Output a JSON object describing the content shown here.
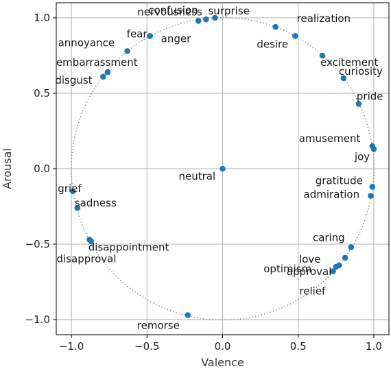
{
  "chart_data": {
    "type": "scatter",
    "title": "",
    "xlabel": "Valence",
    "ylabel": "Arousal",
    "xlim": [
      -1.1,
      1.1
    ],
    "ylim": [
      -1.1,
      1.1
    ],
    "xticks": [
      -1.0,
      -0.5,
      0.0,
      0.5,
      1.0
    ],
    "yticks": [
      -1.0,
      -0.5,
      0.0,
      0.5,
      1.0
    ],
    "xtick_labels": [
      "−1.0",
      "−0.5",
      "0.0",
      "0.5",
      "1.0"
    ],
    "ytick_labels": [
      "−1.0",
      "−0.5",
      "0.0",
      "0.5",
      "1.0"
    ],
    "grid": true,
    "reference_circle": {
      "radius": 1.0,
      "style": "dotted",
      "color": "#888888"
    },
    "marker_color": "#1f77b4",
    "points": [
      {
        "label": "nervousness",
        "x": -0.16,
        "y": 0.98
      },
      {
        "label": "surprise",
        "x": -0.05,
        "y": 1.0
      },
      {
        "label": "confusion",
        "x": -0.11,
        "y": 0.99
      },
      {
        "label": "fear",
        "x": -0.48,
        "y": 0.88
      },
      {
        "label": "anger",
        "x": -0.48,
        "y": 0.88
      },
      {
        "label": "annoyance",
        "x": -0.63,
        "y": 0.78
      },
      {
        "label": "embarrassment",
        "x": -0.76,
        "y": 0.64
      },
      {
        "label": "disgust",
        "x": -0.79,
        "y": 0.61
      },
      {
        "label": "realization",
        "x": 0.35,
        "y": 0.94
      },
      {
        "label": "desire",
        "x": 0.48,
        "y": 0.88
      },
      {
        "label": "excitement",
        "x": 0.66,
        "y": 0.75
      },
      {
        "label": "curiosity",
        "x": 0.8,
        "y": 0.6
      },
      {
        "label": "pride",
        "x": 0.9,
        "y": 0.43
      },
      {
        "label": "amusement",
        "x": 0.99,
        "y": 0.15
      },
      {
        "label": "joy",
        "x": 1.0,
        "y": 0.13
      },
      {
        "label": "gratitude",
        "x": 0.99,
        "y": -0.12
      },
      {
        "label": "admiration",
        "x": 0.98,
        "y": -0.18
      },
      {
        "label": "caring",
        "x": 0.85,
        "y": -0.52
      },
      {
        "label": "love",
        "x": 0.81,
        "y": -0.59
      },
      {
        "label": "optimism",
        "x": 0.77,
        "y": -0.64
      },
      {
        "label": "approval",
        "x": 0.75,
        "y": -0.65
      },
      {
        "label": "relief",
        "x": 0.73,
        "y": -0.68
      },
      {
        "label": "neutral",
        "x": 0.0,
        "y": 0.0
      },
      {
        "label": "grief",
        "x": -0.99,
        "y": -0.15
      },
      {
        "label": "sadness",
        "x": -0.96,
        "y": -0.26
      },
      {
        "label": "disappointment",
        "x": -0.87,
        "y": -0.48
      },
      {
        "label": "disapproval",
        "x": -0.88,
        "y": -0.47
      },
      {
        "label": "remorse",
        "x": -0.23,
        "y": -0.97
      }
    ]
  }
}
